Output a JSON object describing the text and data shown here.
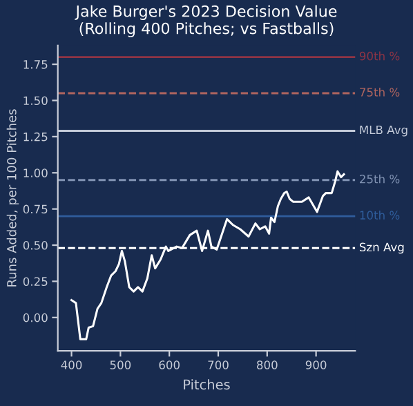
{
  "chart_data": {
    "type": "line",
    "title": "Jake Burger's 2023 Decision Value\n(Rolling 400 Pitches; vs Fastballs)",
    "xlabel": "Pitches",
    "ylabel": "Runs Added, per 100 Pitches",
    "x": [
      400,
      409,
      418,
      430,
      435,
      444,
      453,
      461,
      472,
      481,
      490,
      497,
      503,
      509,
      518,
      527,
      536,
      545,
      555,
      564,
      571,
      582,
      593,
      598,
      615,
      626,
      642,
      656,
      667,
      679,
      686,
      697,
      705,
      718,
      730,
      745,
      762,
      776,
      785,
      796,
      804,
      808,
      815,
      822,
      828,
      835,
      840,
      846,
      853,
      871,
      885,
      902,
      914,
      920,
      932,
      939,
      944,
      951,
      957
    ],
    "series": [
      {
        "color": "#ffffff",
        "values": [
          0.12,
          0.1,
          -0.15,
          -0.15,
          -0.07,
          -0.06,
          0.06,
          0.1,
          0.21,
          0.29,
          0.32,
          0.37,
          0.46,
          0.39,
          0.21,
          0.18,
          0.21,
          0.18,
          0.27,
          0.43,
          0.34,
          0.4,
          0.49,
          0.46,
          0.49,
          0.48,
          0.57,
          0.6,
          0.46,
          0.6,
          0.49,
          0.47,
          0.55,
          0.68,
          0.64,
          0.61,
          0.56,
          0.65,
          0.61,
          0.63,
          0.58,
          0.69,
          0.66,
          0.77,
          0.82,
          0.86,
          0.87,
          0.82,
          0.8,
          0.8,
          0.83,
          0.73,
          0.84,
          0.86,
          0.86,
          0.94,
          1.01,
          0.97,
          0.99
        ]
      }
    ],
    "xlim": [
      372,
      980
    ],
    "ylim": [
      -0.23,
      1.88
    ],
    "xticks": [
      400,
      500,
      600,
      700,
      800,
      900
    ],
    "yticks": [
      {
        "value": 0,
        "label": "0.00"
      },
      {
        "value": 0.25,
        "label": "0.25"
      },
      {
        "value": 0.5,
        "label": "0.50"
      },
      {
        "value": 0.75,
        "label": "0.75"
      },
      {
        "value": 1,
        "label": "1.00"
      },
      {
        "value": 1.25,
        "label": "1.25"
      },
      {
        "value": 1.5,
        "label": "1.50"
      },
      {
        "value": 1.75,
        "label": "1.75"
      }
    ],
    "ref_lines": [
      {
        "axis": "y",
        "value": 1.8,
        "label": "90th %",
        "color": "#8e3445",
        "line_style": "solid"
      },
      {
        "axis": "y",
        "value": 1.55,
        "label": "75th %",
        "color": "#b0655f",
        "line_style": "dashed"
      },
      {
        "axis": "y",
        "value": 1.29,
        "label": "MLB Avg",
        "color": "#c3cad8",
        "line_style": "solid"
      },
      {
        "axis": "y",
        "value": 0.95,
        "label": "25th %",
        "color": "#8193b3",
        "line_style": "dashed"
      },
      {
        "axis": "y",
        "value": 0.7,
        "label": "10th %",
        "color": "#2f5d9c",
        "line_style": "solid"
      },
      {
        "axis": "y",
        "value": 0.48,
        "label": "Szn Avg",
        "color": "#ffffff",
        "line_style": "dashed"
      }
    ],
    "grid": false,
    "legend": false,
    "marker": "none",
    "line_style": "solid"
  }
}
